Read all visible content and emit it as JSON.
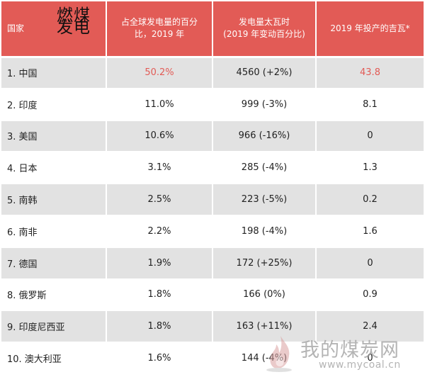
{
  "header": {
    "title_overlay": "燃煤发电",
    "columns": [
      "国家",
      "占全球发电量的百分比，2019 年",
      "发电量太瓦时\n(2019 年变动百分比)",
      "2019 年投产的吉瓦*"
    ]
  },
  "rows": [
    {
      "country": "1. 中国",
      "share": "50.2%",
      "generation": "4560 (+2%)",
      "gw": "43.8"
    },
    {
      "country": "2. 印度",
      "share": "11.0%",
      "generation": "999 (-3%)",
      "gw": "8.1"
    },
    {
      "country": "3. 美国",
      "share": "10.6%",
      "generation": "966 (-16%)",
      "gw": "0"
    },
    {
      "country": "4. 日本",
      "share": "3.1%",
      "generation": "285 (-4%)",
      "gw": "1.3"
    },
    {
      "country": "5. 南韩",
      "share": "2.5%",
      "generation": "223 (-5%)",
      "gw": "0.2"
    },
    {
      "country": "6. 南非",
      "share": "2.2%",
      "generation": "198 (-4%)",
      "gw": "1.6"
    },
    {
      "country": "7. 德国",
      "share": "1.9%",
      "generation": "172 (+25%)",
      "gw": "0"
    },
    {
      "country": "8. 俄罗斯",
      "share": "1.8%",
      "generation": "166 (0%)",
      "gw": "0.9"
    },
    {
      "country": "9. 印度尼西亚",
      "share": "1.8%",
      "generation": "163 (+11%)",
      "gw": "2.4"
    },
    {
      "country": "10. 澳大利亚",
      "share": "1.6%",
      "generation": "144 (-4%)",
      "gw": "0"
    }
  ],
  "watermark": {
    "brand": "我的煤炭网",
    "url": "www.mycoal.cn",
    "icon": "flame-logo-icon"
  },
  "colors": {
    "header_bg": "#e25b56",
    "highlight_text": "#e25b56",
    "stripe": "#e2e2e2"
  }
}
